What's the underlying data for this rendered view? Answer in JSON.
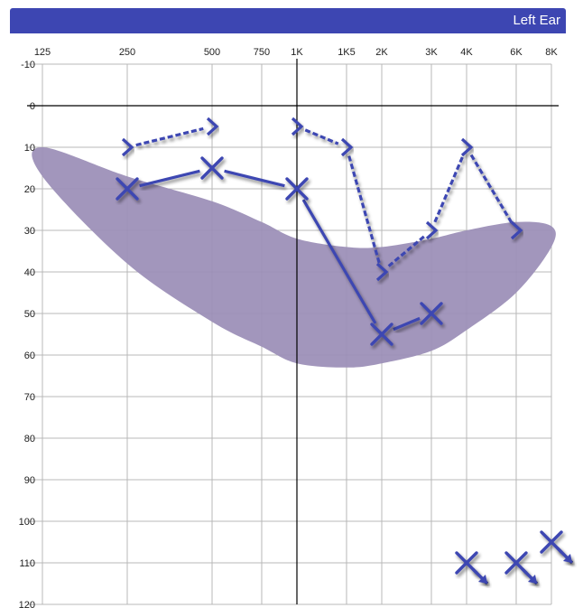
{
  "header": {
    "title": "Left Ear"
  },
  "colors": {
    "accent": "#3d46b2",
    "region": "#9a8db6",
    "grid": "#b8b8b8"
  },
  "chart_data": {
    "type": "scatter",
    "title": "",
    "xlabel": "",
    "ylabel": "",
    "x_tick_labels": [
      "125",
      "250",
      "500",
      "750",
      "1K",
      "1K5",
      "2K",
      "3K",
      "4K",
      "6K",
      "8K"
    ],
    "x_ticks_hz": [
      125,
      250,
      500,
      750,
      1000,
      1500,
      2000,
      3000,
      4000,
      6000,
      8000
    ],
    "y_ticks": [
      -10,
      0,
      10,
      20,
      30,
      40,
      50,
      60,
      70,
      80,
      90,
      100,
      110,
      120
    ],
    "ylim": [
      -10,
      120
    ],
    "y_inverted": true,
    "grid": true,
    "shaded_region": {
      "upper": [
        [
          125,
          10
        ],
        [
          250,
          17
        ],
        [
          500,
          23
        ],
        [
          750,
          28
        ],
        [
          1000,
          32
        ],
        [
          1500,
          34
        ],
        [
          2000,
          34
        ],
        [
          3000,
          32
        ],
        [
          4000,
          30
        ],
        [
          6000,
          28
        ],
        [
          8000,
          29
        ]
      ],
      "lower": [
        [
          125,
          17
        ],
        [
          250,
          38
        ],
        [
          500,
          52
        ],
        [
          750,
          58
        ],
        [
          1000,
          62
        ],
        [
          1500,
          63
        ],
        [
          2000,
          62
        ],
        [
          3000,
          59
        ],
        [
          4000,
          54
        ],
        [
          6000,
          45
        ],
        [
          8000,
          34
        ]
      ]
    },
    "series": [
      {
        "symbol": "x",
        "line": "solid",
        "points": [
          [
            250,
            20
          ],
          [
            500,
            15
          ],
          [
            1000,
            20
          ],
          [
            2000,
            55
          ],
          [
            3000,
            50
          ]
        ]
      },
      {
        "symbol": ">",
        "line": "dashed",
        "points": [
          [
            250,
            10
          ],
          [
            500,
            5
          ],
          [
            1000,
            5
          ],
          [
            1500,
            10
          ],
          [
            2000,
            40
          ],
          [
            3000,
            30
          ],
          [
            4000,
            10
          ],
          [
            6000,
            30
          ]
        ]
      },
      {
        "symbol": "x-no-response",
        "line": "none",
        "points": [
          [
            4000,
            110
          ],
          [
            6000,
            110
          ],
          [
            8000,
            105
          ]
        ]
      }
    ]
  }
}
